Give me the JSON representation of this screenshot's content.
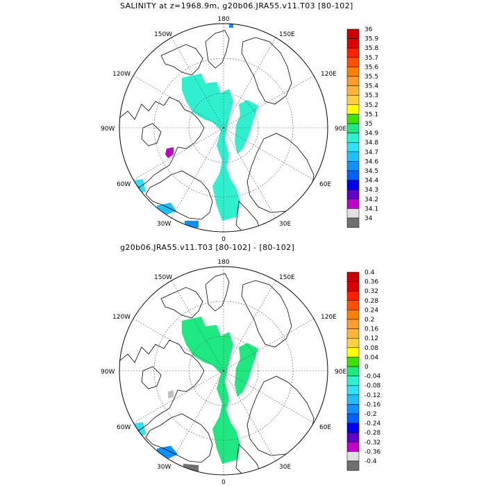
{
  "maps": [
    {
      "title": "SALINITY at z=1968.9m, g20b06.JRA55.v11.T03 [80-102]",
      "lon_labels": {
        "top": "180",
        "bottom": "0",
        "left": "90W",
        "right": "90E",
        "ul1": "150W",
        "ul2": "120W",
        "ll1": "60W",
        "ll2": "30W",
        "ur1": "150E",
        "ur2": "120E",
        "lr1": "60E",
        "lr2": "30E"
      },
      "colorbar": {
        "labels": [
          "36",
          "35.9",
          "35.8",
          "35.7",
          "35.6",
          "35.5",
          "35.4",
          "35.3",
          "35.2",
          "35.1",
          "35",
          "34.9",
          "34.8",
          "34.7",
          "34.6",
          "34.5",
          "34.4",
          "34.3",
          "34.2",
          "34.1",
          "34"
        ],
        "colors": [
          "#c80000",
          "#dc0000",
          "#ff2000",
          "#ff5000",
          "#ff8000",
          "#ff9c30",
          "#ffb43c",
          "#ffd040",
          "#ffff00",
          "#40e000",
          "#20e880",
          "#30f0d0",
          "#30e0f8",
          "#20c0ff",
          "#1090ff",
          "#0060ff",
          "#0000f0",
          "#6000c8",
          "#c000c8",
          "#e0e0e0",
          "#707070"
        ]
      }
    },
    {
      "title": "g20b06.JRA55.v11.T03 [80-102] -  [80-102]",
      "lon_labels": {
        "top": "180",
        "bottom": "0",
        "left": "90W",
        "right": "90E",
        "ul1": "150W",
        "ul2": "120W",
        "ll1": "60W",
        "ll2": "30W",
        "ur1": "150E",
        "ur2": "120E",
        "lr1": "60E",
        "lr2": "30E"
      },
      "colorbar": {
        "labels": [
          "0.4",
          "0.36",
          "0.32",
          "0.28",
          "0.24",
          "0.2",
          "0.16",
          "0.12",
          "0.08",
          "0.04",
          "0",
          "-0.04",
          "-0.08",
          "-0.12",
          "-0.16",
          "-0.2",
          "-0.24",
          "-0.28",
          "-0.32",
          "-0.36",
          "-0.4"
        ],
        "colors": [
          "#c80000",
          "#dc0000",
          "#ff2000",
          "#ff5000",
          "#ff8000",
          "#ff9c30",
          "#ffb43c",
          "#ffd040",
          "#ffff00",
          "#40e000",
          "#20e880",
          "#30f0d0",
          "#30e0f8",
          "#20c0ff",
          "#1090ff",
          "#0060ff",
          "#0000f0",
          "#6000c8",
          "#c000c8",
          "#e0e0e0",
          "#707070"
        ]
      }
    }
  ]
}
